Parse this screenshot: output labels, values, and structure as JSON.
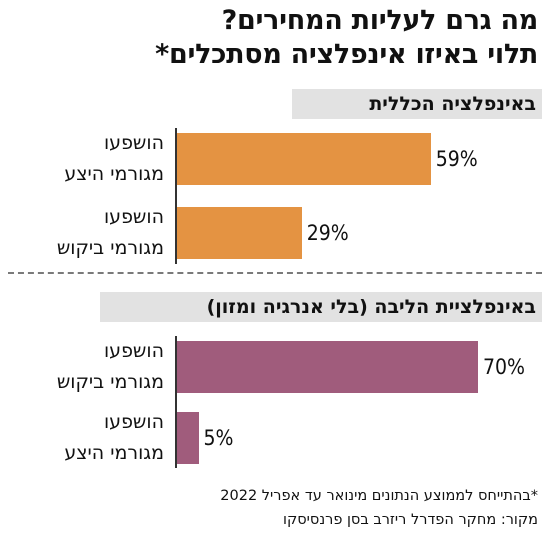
{
  "title_line1": "מה גרם לעליות המחירים?",
  "title_line2": "תלוי באיזו אינפלציה מסתכלים*",
  "chart_data": [
    {
      "type": "bar",
      "title": "באינפלציה הכללית",
      "categories": [
        "הושפעו מגורמי היצע",
        "הושפעו מגורמי ביקוש"
      ],
      "category_lines": [
        [
          "הושפעו",
          "מגורמי היצע"
        ],
        [
          "הושפעו",
          "מגורמי ביקוש"
        ]
      ],
      "values": [
        59,
        29
      ],
      "value_labels": [
        "59%",
        "29%"
      ],
      "unit": "%",
      "color": "#e49342",
      "xlim": [
        0,
        100
      ]
    },
    {
      "type": "bar",
      "title": "באינפלציית הליבה (בלי אנרגיה ומזון)",
      "categories": [
        "הושפעו מגורמי ביקוש",
        "הושפעו מגורמי היצע"
      ],
      "category_lines": [
        [
          "הושפעו",
          "מגורמי ביקוש"
        ],
        [
          "הושפעו",
          "מגורמי היצע"
        ]
      ],
      "values": [
        70,
        5
      ],
      "value_labels": [
        "70%",
        "5%"
      ],
      "unit": "%",
      "color": "#a05c7c",
      "xlim": [
        0,
        100
      ]
    }
  ],
  "footnotes": [
    "*בהתייחס לממוצע הנתונים מינואר עד אפריל 2022",
    "מקור: מחקר הפדרל ריזרב בסן פרנסיסקו"
  ]
}
